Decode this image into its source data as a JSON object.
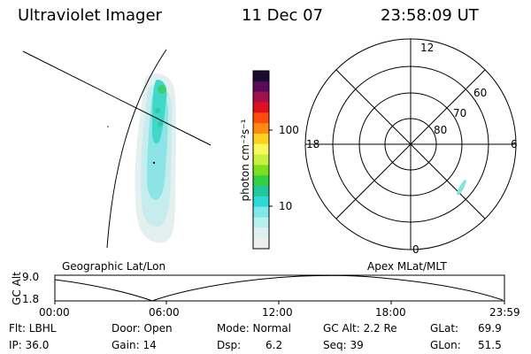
{
  "header": {
    "instrument": "Ultraviolet Imager",
    "date": "11 Dec 07",
    "time": "23:58:09 UT"
  },
  "geo_panel": {
    "label": "Geographic Lat/Lon"
  },
  "colorbar": {
    "unit_label": "photon cm⁻²s⁻¹",
    "ticks": [
      "100",
      "10"
    ],
    "colors": [
      "#1a0a2e",
      "#5a0a5a",
      "#a0104a",
      "#e01020",
      "#ff4a10",
      "#ff8a10",
      "#ffd020",
      "#f8f85a",
      "#c8f040",
      "#7ae020",
      "#30d040",
      "#20c8a0",
      "#30d8d8",
      "#80e8e8",
      "#b8f0f0",
      "#e0f0f0",
      "#eeeeee"
    ]
  },
  "polar_panel": {
    "label": "Apex MLat/MLT",
    "mlt_labels": {
      "top": "12",
      "left": "18",
      "right": "6",
      "bottom": "0"
    },
    "lat_labels": [
      "60",
      "70",
      "80"
    ]
  },
  "timeline": {
    "ylabel": "GC Alt",
    "yticks": [
      "9.0",
      "1.8"
    ],
    "xticks": [
      "00:00",
      "06:00",
      "12:00",
      "18:00",
      "23:59"
    ]
  },
  "footer": {
    "flt": "Flt: LBHL",
    "ip": "IP: 36.0",
    "door": "Door: Open",
    "gain": "Gain: 14",
    "mode": "Mode: Normal",
    "dsp_label": "Dsp:",
    "dsp_value": "6.2",
    "gcalt": "GC Alt: 2.2 Re",
    "seq": "Seq: 39",
    "glat_label": "GLat:",
    "glat_value": "69.9",
    "glon_label": "GLon:",
    "glon_value": "51.5"
  }
}
